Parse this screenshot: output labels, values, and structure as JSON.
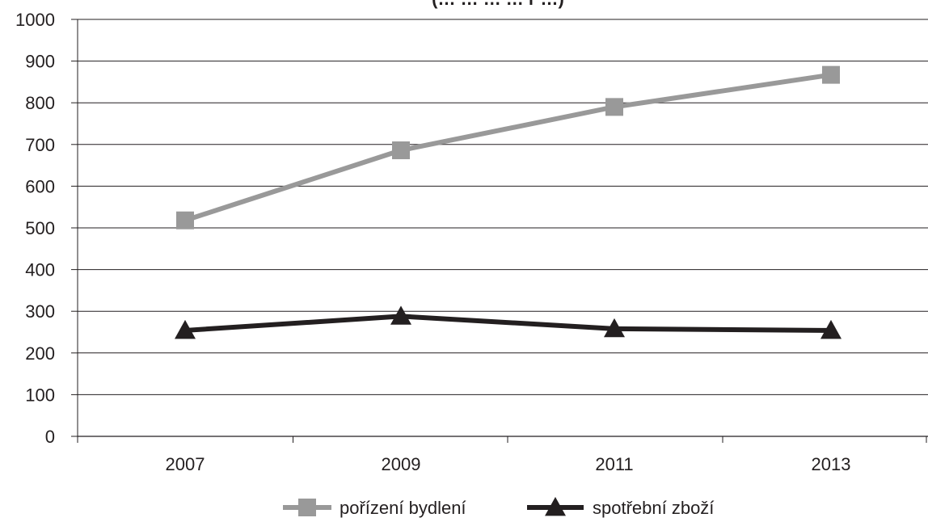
{
  "chart_data": {
    "type": "line",
    "title": "",
    "title_visible_fragment": "(… … … … ľ …)",
    "categories": [
      "2007",
      "2009",
      "2011",
      "2013"
    ],
    "series": [
      {
        "name": "pořízení bydlení",
        "values": [
          518,
          686,
          790,
          867
        ],
        "color": "#999999",
        "marker": "square"
      },
      {
        "name": "spotřební zboží",
        "values": [
          254,
          288,
          258,
          254
        ],
        "color": "#231f20",
        "marker": "triangle"
      }
    ],
    "y_ticks": [
      "0",
      "100",
      "200",
      "300",
      "400",
      "500",
      "600",
      "700",
      "800",
      "900",
      "1000"
    ],
    "ylim": [
      0,
      1000
    ],
    "xlabel": "",
    "ylabel": "",
    "grid": true,
    "legend_position": "bottom"
  }
}
